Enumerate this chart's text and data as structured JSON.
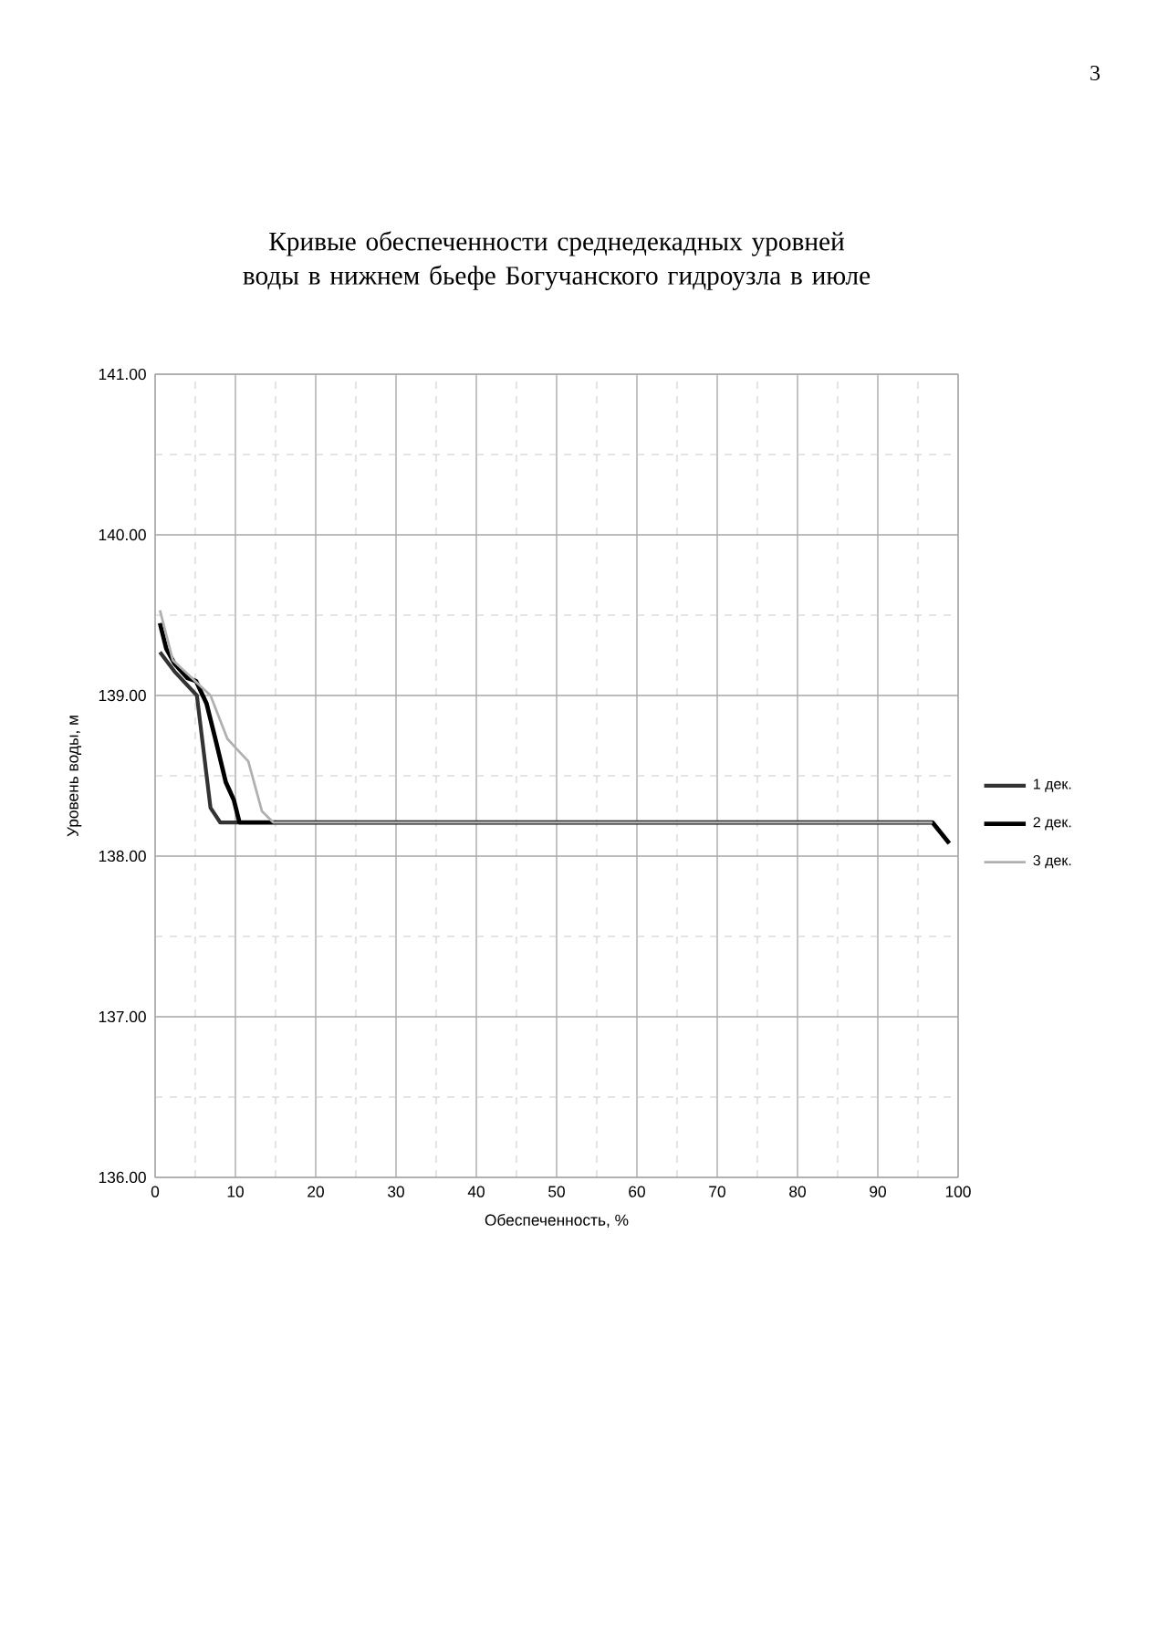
{
  "chart_data": {
    "type": "line",
    "title": "Кривые обеспеченности среднедекадных уровней воды в нижнем бьефе Богучанского гидроузла в июле",
    "xlabel": "Обеспеченность, %",
    "ylabel": "Уровень воды, м",
    "xlim": [
      0,
      100
    ],
    "xticks": [
      0,
      10,
      20,
      30,
      40,
      50,
      60,
      70,
      80,
      90,
      100
    ],
    "ylim": [
      136,
      141
    ],
    "yticks": [
      {
        "value": 136,
        "label": "136.00"
      },
      {
        "value": 137,
        "label": "137.00"
      },
      {
        "value": 138,
        "label": "138.00"
      },
      {
        "value": 139,
        "label": "139.00"
      },
      {
        "value": 140,
        "label": "140.00"
      },
      {
        "value": 141,
        "label": "141.00"
      }
    ],
    "grid": true,
    "legend": "right",
    "marker": "none",
    "line_style": "solid",
    "annotations": [
      "3"
    ],
    "series": [
      {
        "name": "1 дек.",
        "color": "#333333",
        "x": [
          0.6,
          2.4,
          5.2,
          6.9,
          8.1,
          10.5
        ],
        "values": [
          139.27,
          139.15,
          139.0,
          138.3,
          138.21,
          138.21
        ]
      },
      {
        "name": "2 дек.",
        "color": "#000000",
        "x": [
          0.6,
          1.4,
          2.4,
          4.0,
          5.1,
          6.4,
          7.5,
          8.8,
          9.8,
          10.5,
          96.8,
          98.9
        ],
        "values": [
          139.45,
          139.29,
          139.2,
          139.11,
          139.09,
          138.95,
          138.73,
          138.46,
          138.35,
          138.21,
          138.21,
          138.08
        ]
      },
      {
        "name": "3 дек.",
        "color": "#b0b0b0",
        "x": [
          0.6,
          2.2,
          6.9,
          9.0,
          11.6,
          13.3,
          14.7,
          96.8
        ],
        "values": [
          139.53,
          139.22,
          139.0,
          138.73,
          138.59,
          138.28,
          138.21,
          138.21
        ]
      }
    ]
  }
}
